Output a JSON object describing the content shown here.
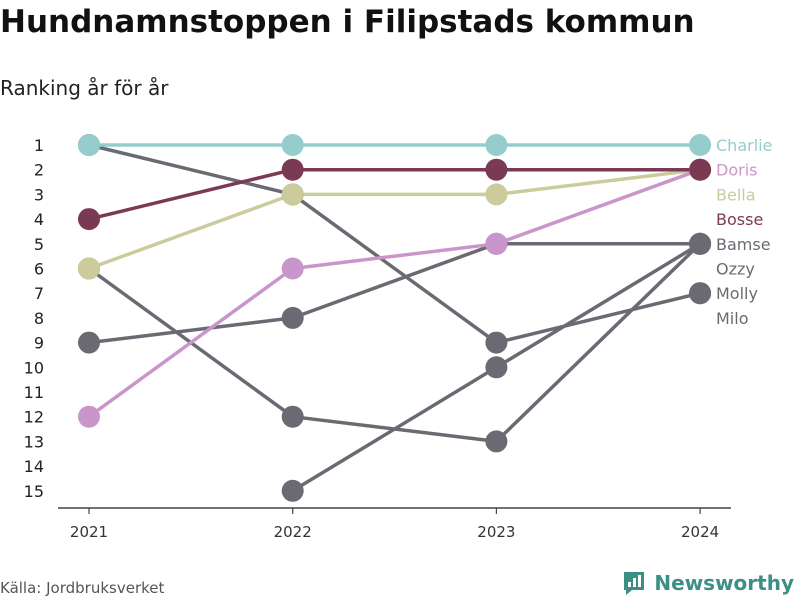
{
  "header": {
    "title": "Hundnamnstoppen i Filipstads kommun",
    "subtitle": "Ranking år för år"
  },
  "footer": {
    "source": "Källa: Jordbruksverket",
    "brand": "Newsworthy",
    "brand_icon": "bar-chart-logo-icon",
    "brand_color": "#3d8f86"
  },
  "chart_data": {
    "type": "line",
    "subtype": "bump",
    "x": [
      "2021",
      "2022",
      "2023",
      "2024"
    ],
    "y_ticks": [
      "1",
      "2",
      "3",
      "4",
      "5",
      "6",
      "7",
      "8",
      "9",
      "10",
      "11",
      "12",
      "13",
      "14",
      "15"
    ],
    "ylim": [
      1,
      15
    ],
    "y_reversed": true,
    "grid": false,
    "legend": "right-end labels",
    "series": [
      {
        "name": "Charlie",
        "color": "#94cdcc",
        "values": [
          1,
          1,
          1,
          1
        ]
      },
      {
        "name": "Doris",
        "color": "#c996cb",
        "values": [
          12,
          6,
          5,
          2
        ]
      },
      {
        "name": "Bella",
        "color": "#cbcb9c",
        "values": [
          6,
          3,
          3,
          2
        ]
      },
      {
        "name": "Bosse",
        "color": "#7b3a53",
        "values": [
          4,
          2,
          2,
          2
        ]
      },
      {
        "name": "Bamse",
        "color": "#6b6a72",
        "values": [
          9,
          8,
          5,
          5
        ]
      },
      {
        "name": "Ozzy",
        "color": "#6b6a72",
        "values": [
          null,
          15,
          10,
          5
        ]
      },
      {
        "name": "Molly",
        "color": "#6b6a72",
        "values": [
          6,
          12,
          13,
          5
        ]
      },
      {
        "name": "Milo",
        "color": "#6b6a72",
        "values": [
          1,
          3,
          9,
          7
        ]
      },
      {
        "name": "",
        "color": "#6b6a72",
        "values": [
          null,
          null,
          null,
          7
        ]
      }
    ]
  }
}
